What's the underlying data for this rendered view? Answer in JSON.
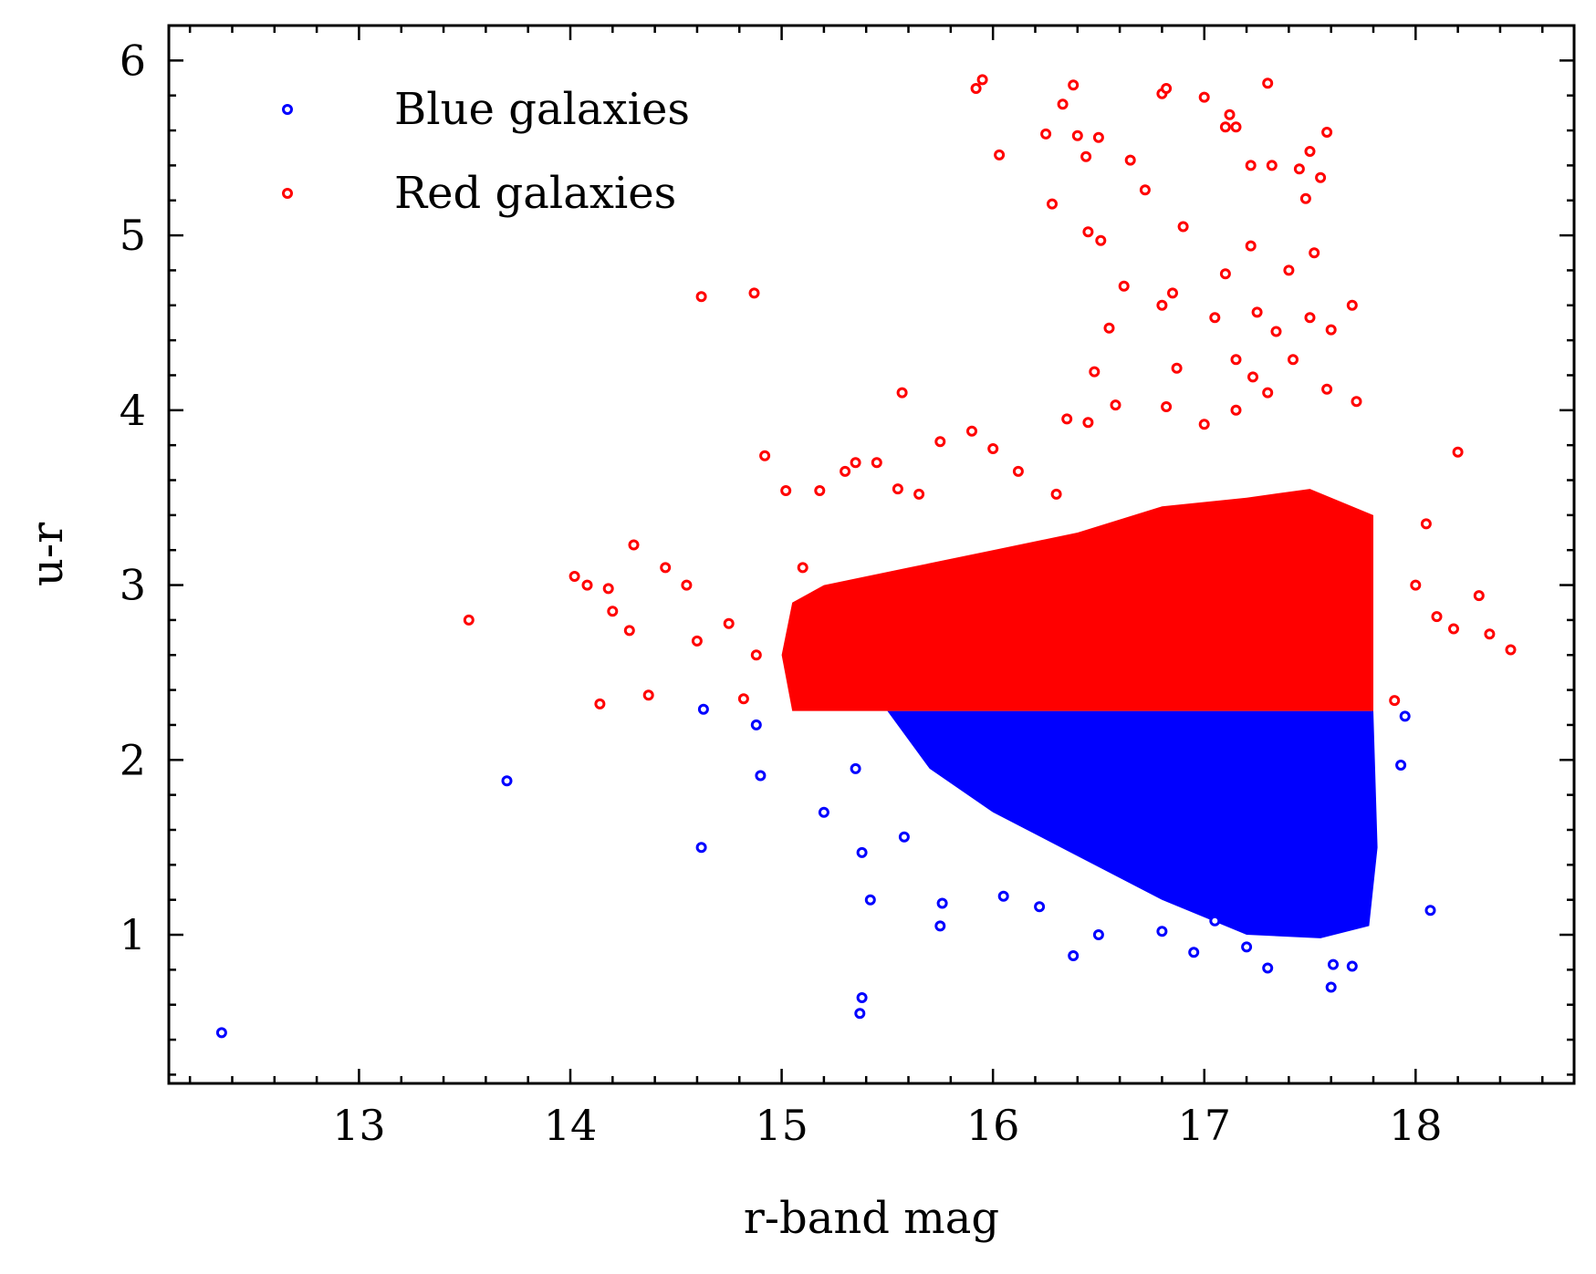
{
  "chart_data": {
    "type": "scatter",
    "title": "",
    "xlabel": "r-band mag",
    "ylabel": "u-r",
    "xlim": [
      12.1,
      18.75
    ],
    "ylim": [
      0.15,
      6.2
    ],
    "xticks": [
      13,
      14,
      15,
      16,
      17,
      18
    ],
    "yticks": [
      1,
      2,
      3,
      4,
      5,
      6
    ],
    "xtick_labels": [
      "13",
      "14",
      "15",
      "16",
      "17",
      "18"
    ],
    "ytick_labels": [
      "1",
      "2",
      "3",
      "4",
      "5",
      "6"
    ],
    "grid": false,
    "legend_position": "top-left",
    "colors": {
      "blue": "#0000ff",
      "red": "#ff0000"
    },
    "series": [
      {
        "name": "Blue galaxies",
        "color": "#0000ff",
        "points": [
          [
            12.35,
            0.44
          ],
          [
            13.7,
            1.88
          ],
          [
            14.62,
            1.5
          ],
          [
            14.63,
            2.29
          ],
          [
            14.88,
            2.2
          ],
          [
            14.9,
            1.91
          ],
          [
            15.2,
            1.7
          ],
          [
            15.35,
            1.95
          ],
          [
            15.38,
            1.47
          ],
          [
            15.37,
            0.55
          ],
          [
            15.38,
            0.64
          ],
          [
            15.42,
            1.2
          ],
          [
            15.58,
            1.56
          ],
          [
            15.75,
            1.05
          ],
          [
            15.76,
            1.18
          ],
          [
            16.05,
            1.22
          ],
          [
            16.22,
            1.16
          ],
          [
            16.38,
            0.88
          ],
          [
            16.95,
            0.9
          ],
          [
            17.05,
            1.08
          ],
          [
            17.2,
            0.93
          ],
          [
            17.3,
            0.81
          ],
          [
            17.6,
            0.7
          ],
          [
            17.61,
            0.83
          ],
          [
            17.7,
            0.82
          ],
          [
            17.93,
            1.97
          ],
          [
            17.95,
            2.25
          ],
          [
            18.07,
            1.14
          ],
          [
            16.5,
            1.0
          ],
          [
            16.8,
            1.02
          ]
        ]
      },
      {
        "name": "Red galaxies",
        "color": "#ff0000",
        "points": [
          [
            13.52,
            2.8
          ],
          [
            14.02,
            3.05
          ],
          [
            14.08,
            3.0
          ],
          [
            14.14,
            2.32
          ],
          [
            14.18,
            2.98
          ],
          [
            14.2,
            2.85
          ],
          [
            14.28,
            2.74
          ],
          [
            14.3,
            3.23
          ],
          [
            14.37,
            2.37
          ],
          [
            14.62,
            4.65
          ],
          [
            14.87,
            4.67
          ],
          [
            14.92,
            3.74
          ],
          [
            15.02,
            3.54
          ],
          [
            15.18,
            3.54
          ],
          [
            15.57,
            4.1
          ],
          [
            15.92,
            5.84
          ],
          [
            15.95,
            5.89
          ],
          [
            16.03,
            5.46
          ],
          [
            16.25,
            5.58
          ],
          [
            16.28,
            5.18
          ],
          [
            16.33,
            5.75
          ],
          [
            16.38,
            5.86
          ],
          [
            16.4,
            5.57
          ],
          [
            16.44,
            5.45
          ],
          [
            16.5,
            5.56
          ],
          [
            16.45,
            5.02
          ],
          [
            16.51,
            4.97
          ],
          [
            16.55,
            4.47
          ],
          [
            16.62,
            4.71
          ],
          [
            16.72,
            5.26
          ],
          [
            16.65,
            5.43
          ],
          [
            16.8,
            5.81
          ],
          [
            16.82,
            5.84
          ],
          [
            16.9,
            5.05
          ],
          [
            17.0,
            5.79
          ],
          [
            17.1,
            5.62
          ],
          [
            17.12,
            5.69
          ],
          [
            17.15,
            5.62
          ],
          [
            17.22,
            5.4
          ],
          [
            17.3,
            5.87
          ],
          [
            17.32,
            5.4
          ],
          [
            17.45,
            5.38
          ],
          [
            17.5,
            5.48
          ],
          [
            17.58,
            5.59
          ],
          [
            17.55,
            5.33
          ],
          [
            17.48,
            5.21
          ],
          [
            17.4,
            4.8
          ],
          [
            17.52,
            4.9
          ],
          [
            17.7,
            4.6
          ],
          [
            17.1,
            4.78
          ],
          [
            17.22,
            4.94
          ],
          [
            16.8,
            4.6
          ],
          [
            16.85,
            4.67
          ],
          [
            17.05,
            4.53
          ],
          [
            17.25,
            4.56
          ],
          [
            17.34,
            4.45
          ],
          [
            17.5,
            4.53
          ],
          [
            17.6,
            4.46
          ],
          [
            17.42,
            4.29
          ],
          [
            17.15,
            4.29
          ],
          [
            17.23,
            4.19
          ],
          [
            17.3,
            4.1
          ],
          [
            17.58,
            4.12
          ],
          [
            17.72,
            4.05
          ],
          [
            16.35,
            3.95
          ],
          [
            16.45,
            3.93
          ],
          [
            16.58,
            4.03
          ],
          [
            16.82,
            4.02
          ],
          [
            17.0,
            3.92
          ],
          [
            17.15,
            4.0
          ],
          [
            16.87,
            4.24
          ],
          [
            16.48,
            4.22
          ],
          [
            18.2,
            3.76
          ],
          [
            18.05,
            3.35
          ],
          [
            18.0,
            3.0
          ],
          [
            18.1,
            2.82
          ],
          [
            18.3,
            2.94
          ],
          [
            18.35,
            2.72
          ],
          [
            18.45,
            2.63
          ],
          [
            18.18,
            2.75
          ],
          [
            17.9,
            2.34
          ],
          [
            14.45,
            3.1
          ],
          [
            14.55,
            3.0
          ],
          [
            14.6,
            2.68
          ],
          [
            14.75,
            2.78
          ],
          [
            14.82,
            2.35
          ],
          [
            14.88,
            2.6
          ],
          [
            15.1,
            3.1
          ],
          [
            15.3,
            3.65
          ],
          [
            15.35,
            3.7
          ],
          [
            15.45,
            3.7
          ],
          [
            15.55,
            3.55
          ],
          [
            15.65,
            3.52
          ],
          [
            15.9,
            3.88
          ],
          [
            15.75,
            3.82
          ],
          [
            16.0,
            3.78
          ],
          [
            16.12,
            3.65
          ],
          [
            16.3,
            3.52
          ]
        ]
      }
    ]
  }
}
